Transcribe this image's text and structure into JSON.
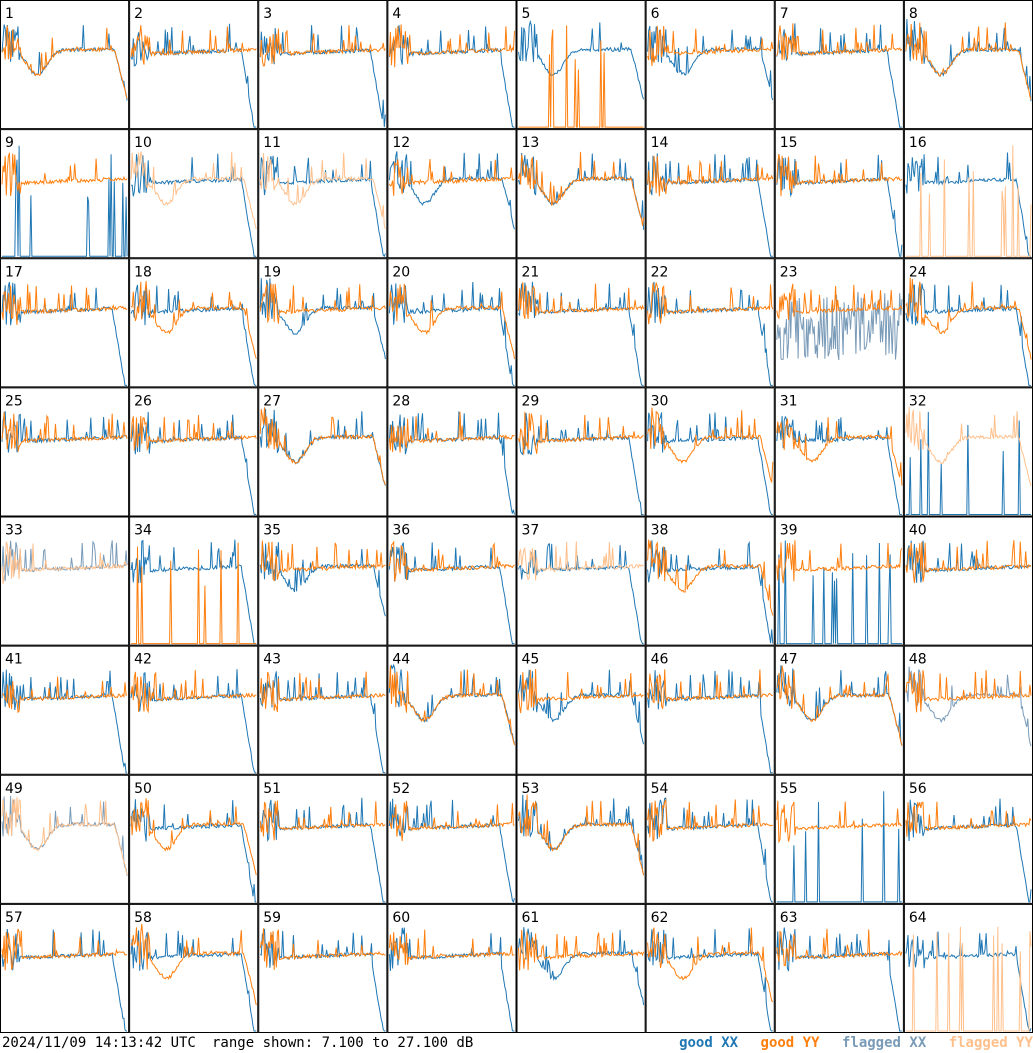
{
  "footer": {
    "timestamp": "2024/11/09 14:13:42 UTC",
    "range_text": "range shown: 7.100 to 27.100 dB"
  },
  "legend": [
    {
      "label": "good XX",
      "color": "#1f77b4"
    },
    {
      "label": "good YY",
      "color": "#ff7f0e"
    },
    {
      "label": "flagged XX",
      "color": "#7a9bb8"
    },
    {
      "label": "flagged YY",
      "color": "#ffc08c"
    }
  ],
  "chart_data": {
    "type": "line",
    "ylim": [
      7.1,
      27.1
    ],
    "panels": [
      {
        "label": "1",
        "xx": "good",
        "yy": "good",
        "xx_style": "dip",
        "yy_style": "dip"
      },
      {
        "label": "2",
        "xx": "good",
        "yy": "good",
        "xx_style": "drop",
        "yy_style": "flat"
      },
      {
        "label": "3",
        "xx": "good",
        "yy": "good",
        "xx_style": "drop",
        "yy_style": "flat"
      },
      {
        "label": "4",
        "xx": "good",
        "yy": "good",
        "xx_style": "drop",
        "yy_style": "flat"
      },
      {
        "label": "5",
        "xx": "good",
        "yy": "good",
        "xx_style": "dip",
        "yy_style": "dead"
      },
      {
        "label": "6",
        "xx": "good",
        "yy": "good",
        "xx_style": "dip",
        "yy_style": "flat"
      },
      {
        "label": "7",
        "xx": "good",
        "yy": "good",
        "xx_style": "drop",
        "yy_style": "flat"
      },
      {
        "label": "8",
        "xx": "good",
        "yy": "good",
        "xx_style": "dip",
        "yy_style": "dip"
      },
      {
        "label": "9",
        "xx": "good",
        "yy": "good",
        "xx_style": "dead",
        "yy_style": "flat"
      },
      {
        "label": "10",
        "xx": "good",
        "yy": "flagged",
        "xx_style": "drop",
        "yy_style": "dip"
      },
      {
        "label": "11",
        "xx": "good",
        "yy": "flagged",
        "xx_style": "drop",
        "yy_style": "dip"
      },
      {
        "label": "12",
        "xx": "good",
        "yy": "good",
        "xx_style": "dip",
        "yy_style": "flat"
      },
      {
        "label": "13",
        "xx": "good",
        "yy": "good",
        "xx_style": "dip",
        "yy_style": "dip"
      },
      {
        "label": "14",
        "xx": "good",
        "yy": "good",
        "xx_style": "drop",
        "yy_style": "flat"
      },
      {
        "label": "15",
        "xx": "good",
        "yy": "good",
        "xx_style": "drop",
        "yy_style": "flat"
      },
      {
        "label": "16",
        "xx": "good",
        "yy": "flagged",
        "xx_style": "drop",
        "yy_style": "dead"
      },
      {
        "label": "17",
        "xx": "good",
        "yy": "good",
        "xx_style": "drop",
        "yy_style": "flat"
      },
      {
        "label": "18",
        "xx": "good",
        "yy": "good",
        "xx_style": "drop",
        "yy_style": "dip"
      },
      {
        "label": "19",
        "xx": "good",
        "yy": "good",
        "xx_style": "dip",
        "yy_style": "flat"
      },
      {
        "label": "20",
        "xx": "good",
        "yy": "good",
        "xx_style": "drop",
        "yy_style": "dip"
      },
      {
        "label": "21",
        "xx": "good",
        "yy": "good",
        "xx_style": "drop",
        "yy_style": "flat"
      },
      {
        "label": "22",
        "xx": "good",
        "yy": "good",
        "xx_style": "drop",
        "yy_style": "flat"
      },
      {
        "label": "23",
        "xx": "flagged",
        "yy": "good",
        "xx_style": "noise",
        "yy_style": "flat"
      },
      {
        "label": "24",
        "xx": "good",
        "yy": "good",
        "xx_style": "drop",
        "yy_style": "dip"
      },
      {
        "label": "25",
        "xx": "good",
        "yy": "good",
        "xx_style": "flat",
        "yy_style": "flat"
      },
      {
        "label": "26",
        "xx": "good",
        "yy": "good",
        "xx_style": "drop",
        "yy_style": "flat"
      },
      {
        "label": "27",
        "xx": "good",
        "yy": "good",
        "xx_style": "dip",
        "yy_style": "dip"
      },
      {
        "label": "28",
        "xx": "good",
        "yy": "good",
        "xx_style": "drop",
        "yy_style": "flat"
      },
      {
        "label": "29",
        "xx": "good",
        "yy": "good",
        "xx_style": "drop",
        "yy_style": "flat"
      },
      {
        "label": "30",
        "xx": "good",
        "yy": "good",
        "xx_style": "drop",
        "yy_style": "dip"
      },
      {
        "label": "31",
        "xx": "good",
        "yy": "good",
        "xx_style": "drop",
        "yy_style": "dip"
      },
      {
        "label": "32",
        "xx": "good",
        "yy": "flagged",
        "xx_style": "dead",
        "yy_style": "dip"
      },
      {
        "label": "33",
        "xx": "flagged",
        "yy": "flagged",
        "xx_style": "flat",
        "yy_style": "flat"
      },
      {
        "label": "34",
        "xx": "good",
        "yy": "good",
        "xx_style": "drop",
        "yy_style": "dead"
      },
      {
        "label": "35",
        "xx": "good",
        "yy": "good",
        "xx_style": "dip",
        "yy_style": "flat"
      },
      {
        "label": "36",
        "xx": "good",
        "yy": "good",
        "xx_style": "drop",
        "yy_style": "flat"
      },
      {
        "label": "37",
        "xx": "good",
        "yy": "flagged",
        "xx_style": "drop",
        "yy_style": "flat"
      },
      {
        "label": "38",
        "xx": "good",
        "yy": "good",
        "xx_style": "drop",
        "yy_style": "dip"
      },
      {
        "label": "39",
        "xx": "good",
        "yy": "good",
        "xx_style": "dead",
        "yy_style": "flat"
      },
      {
        "label": "40",
        "xx": "good",
        "yy": "good",
        "xx_style": "flat",
        "yy_style": "flat"
      },
      {
        "label": "41",
        "xx": "good",
        "yy": "good",
        "xx_style": "drop",
        "yy_style": "flat"
      },
      {
        "label": "42",
        "xx": "good",
        "yy": "good",
        "xx_style": "drop",
        "yy_style": "flat"
      },
      {
        "label": "43",
        "xx": "good",
        "yy": "good",
        "xx_style": "drop",
        "yy_style": "flat"
      },
      {
        "label": "44",
        "xx": "good",
        "yy": "good",
        "xx_style": "dip",
        "yy_style": "dip"
      },
      {
        "label": "45",
        "xx": "good",
        "yy": "good",
        "xx_style": "dip",
        "yy_style": "flat"
      },
      {
        "label": "46",
        "xx": "good",
        "yy": "good",
        "xx_style": "drop",
        "yy_style": "flat"
      },
      {
        "label": "47",
        "xx": "good",
        "yy": "good",
        "xx_style": "dip",
        "yy_style": "dip"
      },
      {
        "label": "48",
        "xx": "flagged",
        "yy": "good",
        "xx_style": "dip",
        "yy_style": "flat"
      },
      {
        "label": "49",
        "xx": "flagged",
        "yy": "flagged",
        "xx_style": "dip",
        "yy_style": "dip"
      },
      {
        "label": "50",
        "xx": "good",
        "yy": "good",
        "xx_style": "drop",
        "yy_style": "dip"
      },
      {
        "label": "51",
        "xx": "good",
        "yy": "good",
        "xx_style": "drop",
        "yy_style": "flat"
      },
      {
        "label": "52",
        "xx": "good",
        "yy": "good",
        "xx_style": "drop",
        "yy_style": "flat"
      },
      {
        "label": "53",
        "xx": "good",
        "yy": "good",
        "xx_style": "dip",
        "yy_style": "dip"
      },
      {
        "label": "54",
        "xx": "good",
        "yy": "good",
        "xx_style": "drop",
        "yy_style": "flat"
      },
      {
        "label": "55",
        "xx": "good",
        "yy": "good",
        "xx_style": "dead",
        "yy_style": "flat"
      },
      {
        "label": "56",
        "xx": "good",
        "yy": "good",
        "xx_style": "drop",
        "yy_style": "flat"
      },
      {
        "label": "57",
        "xx": "good",
        "yy": "good",
        "xx_style": "drop",
        "yy_style": "flat"
      },
      {
        "label": "58",
        "xx": "good",
        "yy": "good",
        "xx_style": "drop",
        "yy_style": "dip"
      },
      {
        "label": "59",
        "xx": "good",
        "yy": "good",
        "xx_style": "drop",
        "yy_style": "flat"
      },
      {
        "label": "60",
        "xx": "good",
        "yy": "good",
        "xx_style": "drop",
        "yy_style": "flat"
      },
      {
        "label": "61",
        "xx": "good",
        "yy": "good",
        "xx_style": "dip",
        "yy_style": "flat"
      },
      {
        "label": "62",
        "xx": "good",
        "yy": "good",
        "xx_style": "drop",
        "yy_style": "dip"
      },
      {
        "label": "63",
        "xx": "good",
        "yy": "good",
        "xx_style": "drop",
        "yy_style": "flat"
      },
      {
        "label": "64",
        "xx": "good",
        "yy": "flagged",
        "xx_style": "drop",
        "yy_style": "dead"
      }
    ]
  }
}
